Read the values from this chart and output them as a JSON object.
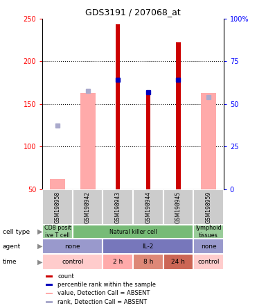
{
  "title": "GDS3191 / 207068_at",
  "samples": [
    "GSM198958",
    "GSM198942",
    "GSM198943",
    "GSM198944",
    "GSM198945",
    "GSM198959"
  ],
  "count_values": [
    null,
    null,
    243,
    165,
    222,
    null
  ],
  "count_absent_val": [
    62,
    163,
    null,
    null,
    null,
    163
  ],
  "percentile_present": [
    null,
    null,
    178,
    164,
    178,
    null
  ],
  "percentile_absent": [
    125,
    165,
    null,
    null,
    null,
    158
  ],
  "ylim_left": [
    50,
    250
  ],
  "ylim_right": [
    0,
    100
  ],
  "yticks_left": [
    50,
    100,
    150,
    200,
    250
  ],
  "yticks_right": [
    0,
    25,
    50,
    75,
    100
  ],
  "color_count": "#cc0000",
  "color_percentile": "#0000bb",
  "color_absent_val": "#ffaaaa",
  "color_absent_rank": "#aaaacc",
  "color_sample_bg": "#cccccc",
  "cell_types": [
    {
      "label": "CD8 posit\nive T cell",
      "span": [
        0,
        1
      ],
      "color": "#99cc99"
    },
    {
      "label": "Natural killer cell",
      "span": [
        1,
        5
      ],
      "color": "#77bb77"
    },
    {
      "label": "lymphoid\ntissues",
      "span": [
        5,
        6
      ],
      "color": "#99cc99"
    }
  ],
  "agents": [
    {
      "label": "none",
      "span": [
        0,
        2
      ],
      "color": "#9999cc"
    },
    {
      "label": "IL-2",
      "span": [
        2,
        5
      ],
      "color": "#7777bb"
    },
    {
      "label": "none",
      "span": [
        5,
        6
      ],
      "color": "#9999cc"
    }
  ],
  "times": [
    {
      "label": "control",
      "span": [
        0,
        2
      ],
      "color": "#ffcccc"
    },
    {
      "label": "2 h",
      "span": [
        2,
        3
      ],
      "color": "#ffaaaa"
    },
    {
      "label": "8 h",
      "span": [
        3,
        4
      ],
      "color": "#dd8877"
    },
    {
      "label": "24 h",
      "span": [
        4,
        5
      ],
      "color": "#cc6655"
    },
    {
      "label": "control",
      "span": [
        5,
        6
      ],
      "color": "#ffcccc"
    }
  ],
  "legend_items": [
    {
      "color": "#cc0000",
      "label": "count",
      "marker": "s"
    },
    {
      "color": "#0000bb",
      "label": "percentile rank within the sample",
      "marker": "s"
    },
    {
      "color": "#ffaaaa",
      "label": "value, Detection Call = ABSENT",
      "marker": "s"
    },
    {
      "color": "#aaaacc",
      "label": "rank, Detection Call = ABSENT",
      "marker": "s"
    }
  ]
}
